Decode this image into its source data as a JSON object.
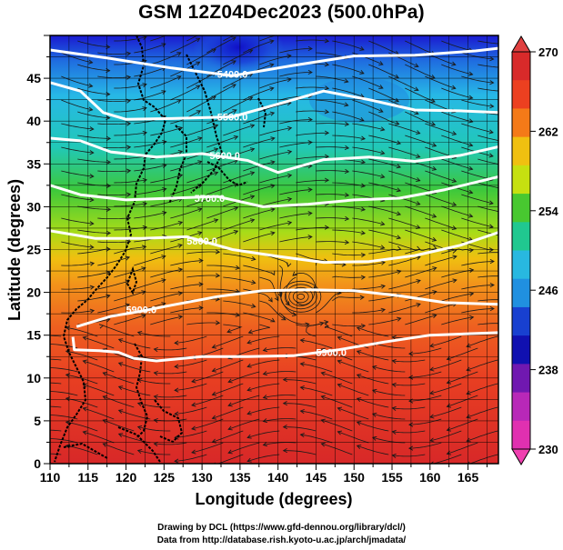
{
  "title": "GSM 12Z04Dec2023 (500.0hPa)",
  "credits": [
    "Drawing by DCL (https://www.gfd-dennou.org/library/dcl/)",
    "Data from http://database.rish.kyoto-u.ac.jp/arch/jmadata/"
  ],
  "map": {
    "x_axis": {
      "label": "Longitude (degrees)",
      "range": [
        110,
        169
      ],
      "tick_labels": [
        "110",
        "115",
        "120",
        "125",
        "130",
        "135",
        "140",
        "145",
        "150",
        "155",
        "160",
        "165"
      ]
    },
    "y_axis": {
      "label": "Latitude (degrees)",
      "range": [
        0,
        50
      ],
      "tick_labels": [
        "0",
        "5",
        "10",
        "15",
        "20",
        "25",
        "30",
        "35",
        "40",
        "45"
      ]
    },
    "grid": true,
    "fill_field": "temperature (K), shaded",
    "vector_field": "wind streamlines",
    "contour_labels": [
      {
        "text": "5400.0",
        "lon": 134,
        "lat": 45.5
      },
      {
        "text": "5500.0",
        "lon": 134,
        "lat": 40.5
      },
      {
        "text": "5600.0",
        "lon": 133,
        "lat": 36
      },
      {
        "text": "5700.0",
        "lon": 131,
        "lat": 31
      },
      {
        "text": "5800.0",
        "lon": 130,
        "lat": 26
      },
      {
        "text": "5900.0",
        "lon": 122,
        "lat": 18
      },
      {
        "text": "5900.0",
        "lon": 147,
        "lat": 13
      }
    ],
    "contours": [
      {
        "level": 5400,
        "points": [
          [
            110,
            48.3
          ],
          [
            118,
            47.3
          ],
          [
            126,
            46.2
          ],
          [
            134,
            45.3
          ],
          [
            142,
            46.5
          ],
          [
            150,
            47.6
          ],
          [
            158,
            47.7
          ],
          [
            166,
            48.2
          ],
          [
            169,
            48.5
          ]
        ]
      },
      {
        "level": 5500,
        "points": [
          [
            110,
            44.5
          ],
          [
            114,
            43.5
          ],
          [
            117,
            41
          ],
          [
            120,
            40.2
          ],
          [
            126,
            40.3
          ],
          [
            134,
            40.5
          ],
          [
            140,
            42
          ],
          [
            146,
            43.5
          ],
          [
            152,
            42.5
          ],
          [
            158,
            41.3
          ],
          [
            164,
            41.2
          ],
          [
            169,
            41
          ]
        ]
      },
      {
        "level": 5600,
        "points": [
          [
            110,
            38
          ],
          [
            114,
            37.7
          ],
          [
            118,
            36.4
          ],
          [
            124,
            35.8
          ],
          [
            130,
            36.2
          ],
          [
            136,
            35.4
          ],
          [
            140,
            34
          ],
          [
            146,
            35.5
          ],
          [
            152,
            35.8
          ],
          [
            158,
            35.3
          ],
          [
            164,
            36
          ],
          [
            169,
            37
          ]
        ]
      },
      {
        "level": 5700,
        "points": [
          [
            110,
            32.5
          ],
          [
            114,
            31.4
          ],
          [
            120,
            30.8
          ],
          [
            126,
            31
          ],
          [
            132,
            31.2
          ],
          [
            138,
            30
          ],
          [
            144,
            30.3
          ],
          [
            150,
            30.8
          ],
          [
            156,
            31
          ],
          [
            162,
            32
          ],
          [
            169,
            33.5
          ]
        ]
      },
      {
        "level": 5800,
        "points": [
          [
            110,
            27.2
          ],
          [
            116,
            26.3
          ],
          [
            122,
            26.3
          ],
          [
            128,
            26.5
          ],
          [
            134,
            25
          ],
          [
            140,
            24.2
          ],
          [
            146,
            23.5
          ],
          [
            152,
            23.6
          ],
          [
            158,
            24.3
          ],
          [
            164,
            25.5
          ],
          [
            169,
            27
          ]
        ]
      },
      {
        "level": 5900,
        "points": [
          [
            113.5,
            16
          ],
          [
            118,
            17.2
          ],
          [
            122,
            17.8
          ],
          [
            126,
            18.5
          ],
          [
            132,
            19.5
          ],
          [
            138,
            20.2
          ],
          [
            144,
            20.3
          ],
          [
            150,
            20.2
          ],
          [
            156,
            19.6
          ],
          [
            162,
            18.8
          ],
          [
            169,
            18.6
          ]
        ]
      },
      {
        "level": 5900,
        "points": [
          [
            113,
            14.8
          ],
          [
            113.2,
            13.3
          ],
          [
            116.5,
            13.2
          ],
          [
            119,
            13
          ],
          [
            121,
            12.3
          ],
          [
            124,
            12
          ],
          [
            130,
            12.5
          ],
          [
            136,
            12.5
          ],
          [
            142,
            12.6
          ],
          [
            148,
            13.3
          ],
          [
            154,
            14.2
          ],
          [
            160,
            15
          ],
          [
            169,
            15.3
          ]
        ]
      }
    ]
  },
  "colorbar": {
    "tick_labels": [
      "270",
      "262",
      "254",
      "246",
      "238",
      "230"
    ],
    "colors": [
      "#d82a2a",
      "#ec4020",
      "#f47a18",
      "#f0c010",
      "#c6e010",
      "#48c830",
      "#20c890",
      "#28b8e0",
      "#2090e0",
      "#1840d0",
      "#1010b0",
      "#7018b0",
      "#b828b8",
      "#e030b0"
    ]
  }
}
